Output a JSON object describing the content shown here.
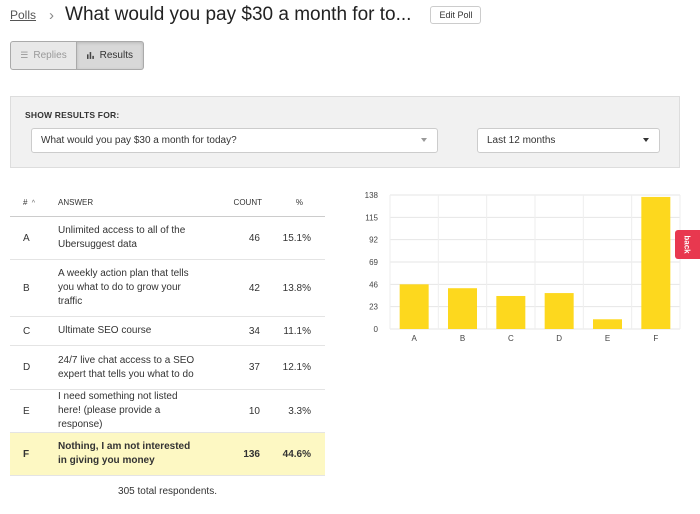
{
  "header": {
    "breadcrumb": "Polls",
    "separator": "›",
    "title": "What would you pay $30 a month for to...",
    "edit_label": "Edit Poll"
  },
  "view_toggle": {
    "replies_label": "Replies",
    "results_label": "Results",
    "replies_icon": "list-icon",
    "results_icon": "bar-chart-icon"
  },
  "filters": {
    "label": "SHOW RESULTS FOR:",
    "question_value": "What would you pay $30 a month for today?",
    "range_value": "Last 12 months"
  },
  "table": {
    "headers": {
      "id": "#",
      "sort_glyph": "^",
      "answer": "ANSWER",
      "count": "COUNT",
      "pct": "%"
    },
    "rows": [
      {
        "id": "A",
        "answer": "Unlimited access to all of the Ubersuggest data",
        "count": "46",
        "pct": "15.1%"
      },
      {
        "id": "B",
        "answer": "A weekly action plan that tells you what to do to grow your traffic",
        "count": "42",
        "pct": "13.8%"
      },
      {
        "id": "C",
        "answer": "Ultimate SEO course",
        "count": "34",
        "pct": "11.1%"
      },
      {
        "id": "D",
        "answer": "24/7 live chat access to a SEO expert that tells you what to do",
        "count": "37",
        "pct": "12.1%"
      },
      {
        "id": "E",
        "answer": "I need something not listed here! (please provide a response)",
        "count": "10",
        "pct": "3.3%"
      },
      {
        "id": "F",
        "answer": "Nothing, I am not interested in giving you money",
        "count": "136",
        "pct": "44.6%"
      }
    ],
    "total": "305 total respondents."
  },
  "chart_data": {
    "type": "bar",
    "categories": [
      "A",
      "B",
      "C",
      "D",
      "E",
      "F"
    ],
    "values": [
      46,
      42,
      34,
      37,
      10,
      136
    ],
    "yticks": [
      "0",
      "23",
      "46",
      "69",
      "92",
      "115",
      "138"
    ],
    "ylim": [
      0,
      138
    ],
    "grid": true,
    "bar_color": "#fdd81e"
  },
  "feedback_tab": {
    "label": "back"
  },
  "colors": {
    "highlight_row": "#fdf8c3",
    "bar": "#fdd81e",
    "feedback": "#e8384f"
  }
}
